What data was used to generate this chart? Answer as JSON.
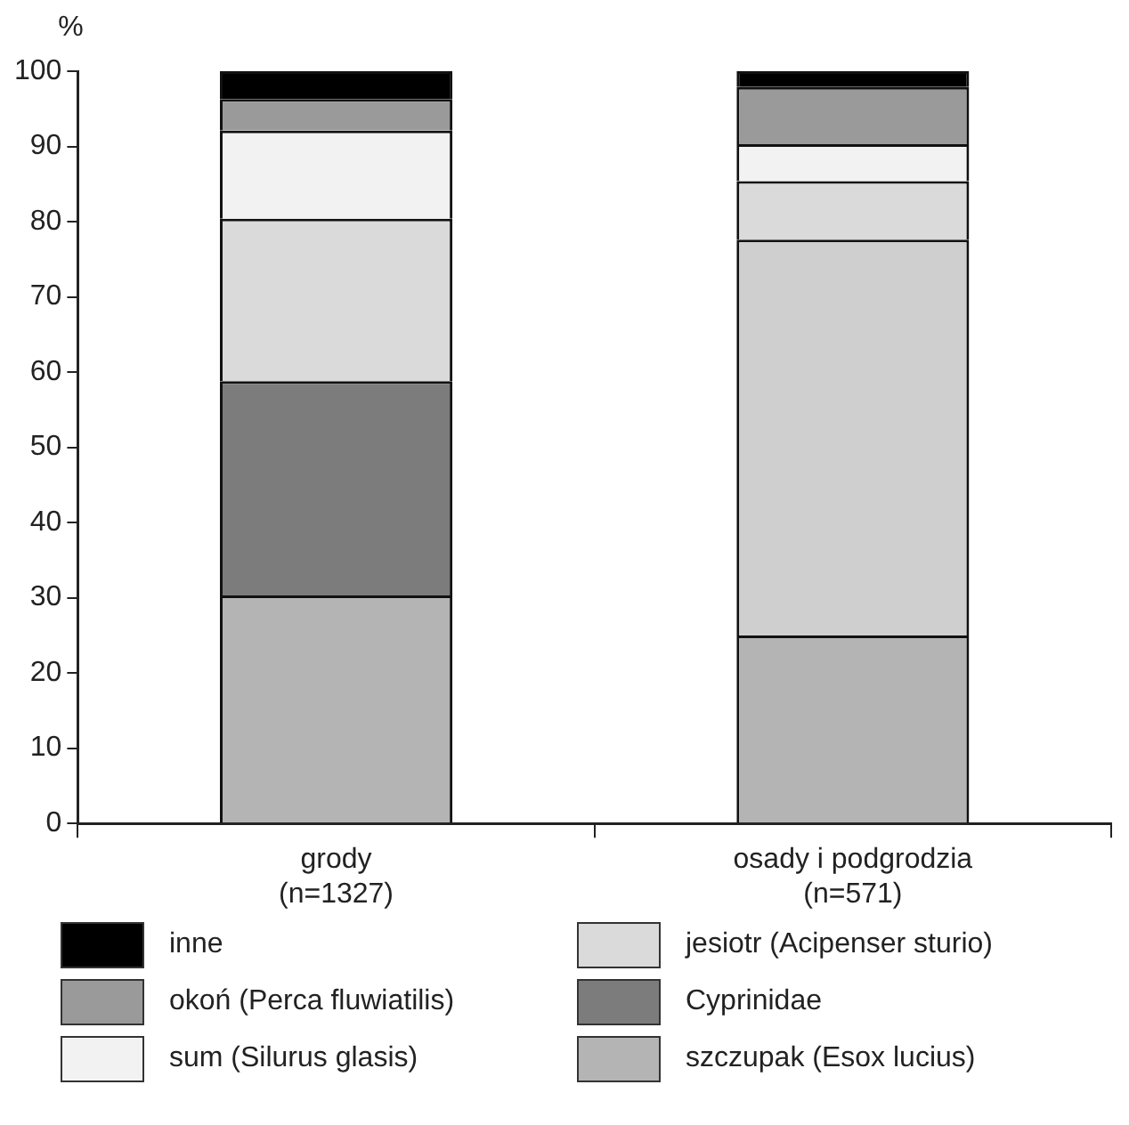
{
  "chart_data": {
    "type": "bar",
    "stacked": true,
    "ylabel": "%",
    "categories": [
      "grody\n(n=1327)",
      "osady i podgrodzia\n(n=571)"
    ],
    "ylim": [
      0,
      100
    ],
    "yticks": [
      0,
      10,
      20,
      30,
      40,
      50,
      60,
      70,
      80,
      90,
      100
    ],
    "grid": false,
    "legend": "bottom",
    "series": [
      {
        "name": "szczupak (Esox lucius)",
        "color": "#b4b4b4",
        "values": [
          30.3,
          25
        ]
      },
      {
        "name": "Cyprinidae",
        "color": "#7c7c7c",
        "colors": [
          "#7c7c7c",
          "#cfcfcf"
        ],
        "values": [
          28.5,
          52.6
        ]
      },
      {
        "name": "jesiotr (Acipenser sturio)",
        "color": "#dadada",
        "values": [
          21.6,
          7.8
        ]
      },
      {
        "name": "sum (Silurus glasis)",
        "color": "#f2f2f2",
        "values": [
          11.7,
          4.9
        ]
      },
      {
        "name": "okoń (Perca fluwiatilis)",
        "color": "#9a9a9a",
        "values": [
          4.2,
          7.6
        ]
      },
      {
        "name": "inne",
        "color": "#000000",
        "values": [
          3.7,
          2.1
        ]
      }
    ]
  }
}
